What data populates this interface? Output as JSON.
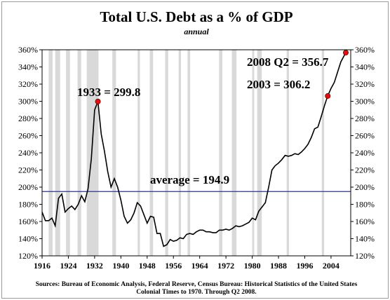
{
  "chart_data": {
    "type": "line",
    "title": "Total U.S. Debt as a % of GDP",
    "subtitle": "annual",
    "xlim": [
      1916,
      2010
    ],
    "ylim": [
      120,
      360
    ],
    "y_ticks": [
      "120%",
      "140%",
      "160%",
      "180%",
      "200%",
      "220%",
      "240%",
      "260%",
      "280%",
      "300%",
      "320%",
      "340%",
      "360%"
    ],
    "y_tick_values": [
      120,
      140,
      160,
      180,
      200,
      220,
      240,
      260,
      280,
      300,
      320,
      340,
      360
    ],
    "x_ticks": [
      "1916",
      "1924",
      "1932",
      "1940",
      "1948",
      "1956",
      "1964",
      "1972",
      "1980",
      "1988",
      "1996",
      "2004"
    ],
    "x_tick_values": [
      1916,
      1924,
      1932,
      1940,
      1948,
      1956,
      1964,
      1972,
      1980,
      1988,
      1996,
      2004
    ],
    "grid": false,
    "line_color": "#000000",
    "average_color": "#2a2ad0",
    "recession_color": "#d9d9d9",
    "marker_color": "#e01010",
    "series": [
      {
        "values": [
          [
            1916,
            171
          ],
          [
            1917,
            161
          ],
          [
            1918,
            161
          ],
          [
            1919,
            164
          ],
          [
            1920,
            155
          ],
          [
            1921,
            187
          ],
          [
            1922,
            192
          ],
          [
            1923,
            171
          ],
          [
            1924,
            175
          ],
          [
            1925,
            178
          ],
          [
            1926,
            174
          ],
          [
            1927,
            180
          ],
          [
            1928,
            190
          ],
          [
            1929,
            183
          ],
          [
            1930,
            198
          ],
          [
            1931,
            233
          ],
          [
            1932,
            290
          ],
          [
            1933,
            299.8
          ],
          [
            1934,
            262
          ],
          [
            1935,
            242
          ],
          [
            1936,
            218
          ],
          [
            1937,
            200
          ],
          [
            1938,
            210
          ],
          [
            1939,
            200
          ],
          [
            1940,
            185
          ],
          [
            1941,
            166
          ],
          [
            1942,
            158
          ],
          [
            1943,
            162
          ],
          [
            1944,
            170
          ],
          [
            1945,
            182
          ],
          [
            1946,
            178
          ],
          [
            1947,
            168
          ],
          [
            1948,
            158
          ],
          [
            1949,
            166
          ],
          [
            1950,
            165
          ],
          [
            1951,
            146
          ],
          [
            1952,
            146
          ],
          [
            1953,
            131
          ],
          [
            1954,
            133
          ],
          [
            1955,
            139
          ],
          [
            1956,
            137
          ],
          [
            1957,
            138
          ],
          [
            1958,
            141
          ],
          [
            1959,
            140
          ],
          [
            1960,
            145
          ],
          [
            1961,
            146
          ],
          [
            1962,
            145
          ],
          [
            1963,
            148
          ],
          [
            1964,
            150
          ],
          [
            1965,
            150
          ],
          [
            1966,
            148
          ],
          [
            1967,
            148
          ],
          [
            1968,
            147
          ],
          [
            1969,
            147
          ],
          [
            1970,
            150
          ],
          [
            1971,
            150
          ],
          [
            1972,
            151
          ],
          [
            1973,
            150
          ],
          [
            1974,
            152
          ],
          [
            1975,
            155
          ],
          [
            1976,
            154
          ],
          [
            1977,
            155
          ],
          [
            1978,
            157
          ],
          [
            1979,
            159
          ],
          [
            1980,
            164
          ],
          [
            1981,
            162
          ],
          [
            1982,
            172
          ],
          [
            1983,
            177
          ],
          [
            1984,
            182
          ],
          [
            1985,
            200
          ],
          [
            1986,
            220
          ],
          [
            1987,
            225
          ],
          [
            1988,
            228
          ],
          [
            1989,
            232
          ],
          [
            1990,
            237
          ],
          [
            1991,
            236
          ],
          [
            1992,
            237
          ],
          [
            1993,
            239
          ],
          [
            1994,
            238
          ],
          [
            1995,
            241
          ],
          [
            1996,
            245
          ],
          [
            1997,
            250
          ],
          [
            1998,
            258
          ],
          [
            1999,
            268
          ],
          [
            2000,
            270
          ],
          [
            2001,
            282
          ],
          [
            2002,
            295
          ],
          [
            2003,
            306.2
          ],
          [
            2004,
            315
          ],
          [
            2005,
            322
          ],
          [
            2006,
            334
          ],
          [
            2007,
            346
          ],
          [
            2008.5,
            356.7
          ]
        ]
      }
    ],
    "average": {
      "value": 194.9,
      "label": "average = 194.9"
    },
    "recessions": [
      [
        1918.0,
        1919.2
      ],
      [
        1920.0,
        1921.5
      ],
      [
        1923.3,
        1924.5
      ],
      [
        1926.8,
        1927.9
      ],
      [
        1929.6,
        1933.2
      ],
      [
        1937.4,
        1938.5
      ],
      [
        1945.1,
        1945.8
      ],
      [
        1948.8,
        1949.8
      ],
      [
        1953.5,
        1954.4
      ],
      [
        1957.6,
        1958.3
      ],
      [
        1960.3,
        1961.1
      ],
      [
        1969.9,
        1970.9
      ],
      [
        1973.8,
        1975.2
      ],
      [
        1980.0,
        1980.6
      ],
      [
        1981.5,
        1982.9
      ],
      [
        1990.5,
        1991.2
      ],
      [
        2001.2,
        2001.9
      ]
    ],
    "annotations": [
      {
        "label": "1933 = 299.8",
        "x": 1933,
        "y": 299.8
      },
      {
        "label": "2003 = 306.2",
        "x": 2003,
        "y": 306.2
      },
      {
        "label": "2008 Q2 = 356.7",
        "x": 2008.5,
        "y": 356.7
      }
    ],
    "source_line1": "Sources: Bureau of Economic Analysis, Federal Reserve, Census Bureau: Historical Statistics of the United States",
    "source_line2": "Colonial Times to 1970.   Through Q2 2008."
  }
}
